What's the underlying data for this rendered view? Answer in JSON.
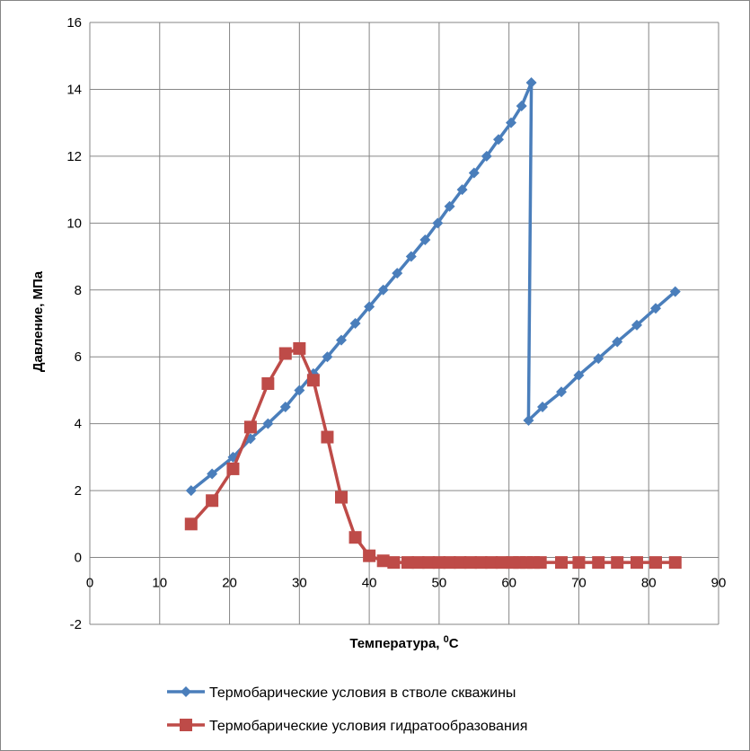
{
  "chart_data": {
    "type": "line",
    "xlabel": "Температура, ",
    "xlabel_sup": "0",
    "xlabel_unit": "C",
    "ylabel": "Давление, МПа",
    "xlim": [
      0,
      90
    ],
    "ylim": [
      -2,
      16
    ],
    "xticks": [
      0,
      10,
      20,
      30,
      40,
      50,
      60,
      70,
      80,
      90
    ],
    "yticks": [
      -2,
      0,
      2,
      4,
      6,
      8,
      10,
      12,
      14,
      16
    ],
    "grid": true,
    "legend_position": "bottom",
    "series": [
      {
        "name": "Термобарические условия в стволе скважины",
        "color": "#4a7ebb",
        "marker": "diamond",
        "points": [
          [
            14.5,
            2.0
          ],
          [
            17.5,
            2.5
          ],
          [
            20.5,
            3.0
          ],
          [
            23.0,
            3.55
          ],
          [
            25.5,
            4.0
          ],
          [
            28.0,
            4.5
          ],
          [
            30.0,
            5.0
          ],
          [
            32.0,
            5.5
          ],
          [
            34.0,
            6.0
          ],
          [
            36.0,
            6.5
          ],
          [
            38.0,
            7.0
          ],
          [
            40.0,
            7.5
          ],
          [
            42.0,
            8.0
          ],
          [
            44.0,
            8.5
          ],
          [
            46.0,
            9.0
          ],
          [
            48.0,
            9.5
          ],
          [
            49.8,
            10.0
          ],
          [
            51.5,
            10.5
          ],
          [
            53.3,
            11.0
          ],
          [
            55.0,
            11.5
          ],
          [
            56.8,
            12.0
          ],
          [
            58.5,
            12.5
          ],
          [
            60.3,
            13.0
          ],
          [
            61.8,
            13.5
          ],
          [
            63.2,
            14.2
          ],
          [
            62.8,
            4.1
          ],
          [
            64.8,
            4.5
          ],
          [
            67.5,
            4.95
          ],
          [
            70.0,
            5.45
          ],
          [
            72.8,
            5.95
          ],
          [
            75.5,
            6.45
          ],
          [
            78.3,
            6.95
          ],
          [
            81.0,
            7.45
          ],
          [
            83.8,
            7.95
          ]
        ]
      },
      {
        "name": "Термобарические условия гидратообразования",
        "color": "#be4b48",
        "marker": "square",
        "points": [
          [
            14.5,
            1.0
          ],
          [
            17.5,
            1.7
          ],
          [
            20.5,
            2.65
          ],
          [
            23.0,
            3.9
          ],
          [
            25.5,
            5.2
          ],
          [
            28.0,
            6.1
          ],
          [
            30.0,
            6.25
          ],
          [
            32.0,
            5.3
          ],
          [
            34.0,
            3.6
          ],
          [
            36.0,
            1.8
          ],
          [
            38.0,
            0.6
          ],
          [
            40.0,
            0.05
          ],
          [
            42.0,
            -0.1
          ],
          [
            43.5,
            -0.15
          ],
          [
            45.5,
            -0.15
          ],
          [
            47.0,
            -0.15
          ],
          [
            48.5,
            -0.15
          ],
          [
            50.0,
            -0.15
          ],
          [
            51.5,
            -0.15
          ],
          [
            53.0,
            -0.15
          ],
          [
            54.5,
            -0.15
          ],
          [
            56.0,
            -0.15
          ],
          [
            57.5,
            -0.15
          ],
          [
            59.0,
            -0.15
          ],
          [
            60.5,
            -0.15
          ],
          [
            61.5,
            -0.15
          ],
          [
            62.5,
            -0.15
          ],
          [
            63.5,
            -0.15
          ],
          [
            64.5,
            -0.15
          ],
          [
            67.5,
            -0.15
          ],
          [
            70.0,
            -0.15
          ],
          [
            72.8,
            -0.15
          ],
          [
            75.5,
            -0.15
          ],
          [
            78.3,
            -0.15
          ],
          [
            81.0,
            -0.15
          ],
          [
            83.8,
            -0.15
          ]
        ]
      }
    ]
  }
}
